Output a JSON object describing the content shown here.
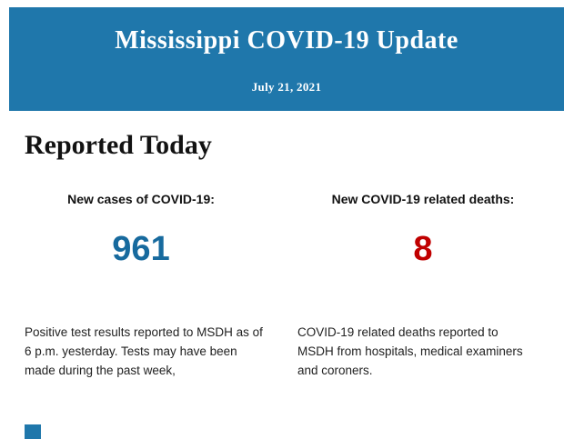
{
  "colors": {
    "header_bg": "#1f77ab",
    "cases_value": "#176a9e",
    "deaths_value": "#c00000"
  },
  "header": {
    "title": "Mississippi COVID-19 Update",
    "date": "July 21, 2021"
  },
  "main": {
    "section_title": "Reported Today",
    "stats": [
      {
        "label": "New cases of COVID-19:",
        "value": "961",
        "description": "Positive test results reported to MSDH as of 6 p.m. yesterday. Tests may have been made during the past week,"
      },
      {
        "label": "New COVID-19 related deaths:",
        "value": "8",
        "description": "COVID-19 related deaths reported to MSDH from hospitals, medical examiners and coroners."
      }
    ]
  }
}
